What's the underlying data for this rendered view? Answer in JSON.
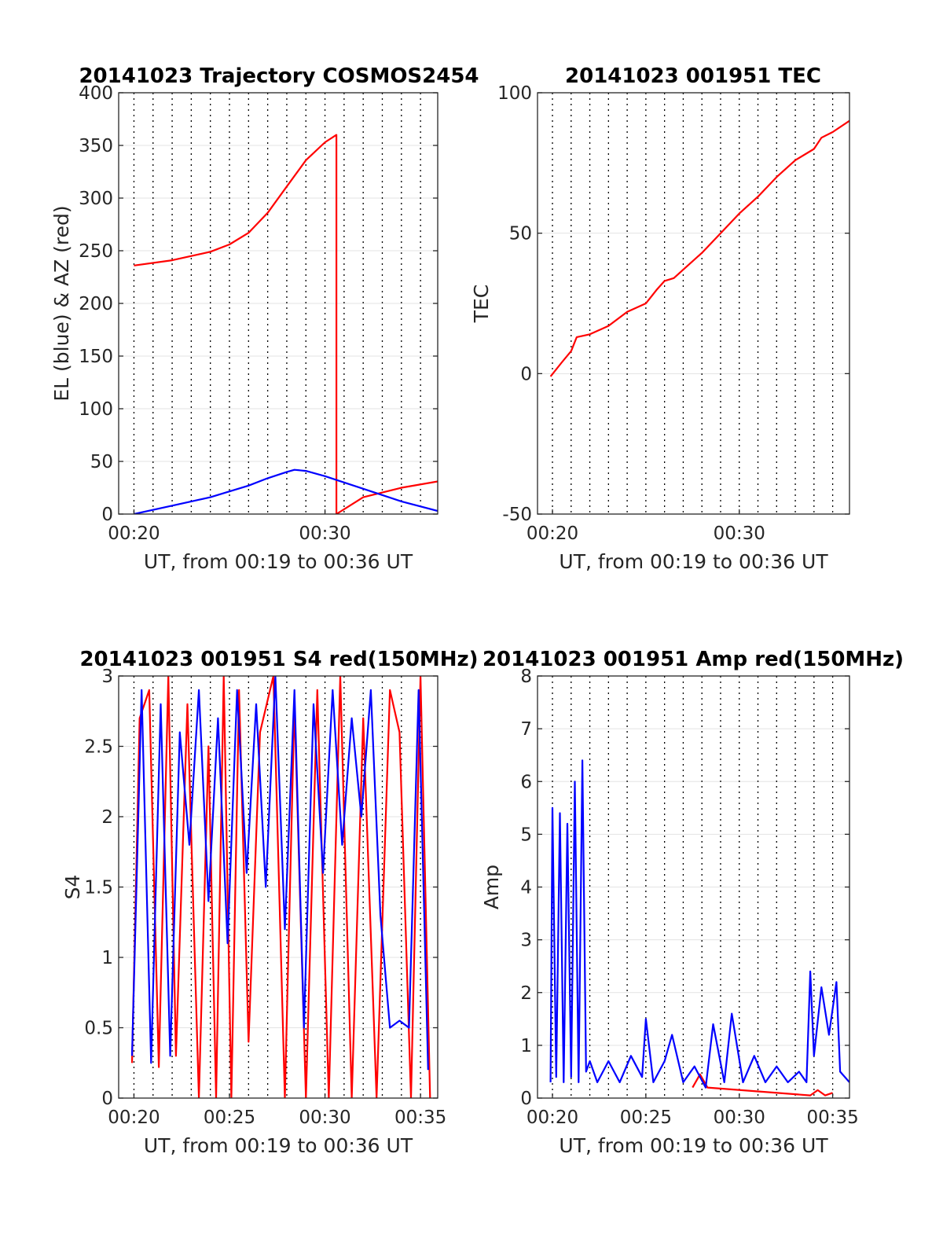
{
  "chart_data": [
    {
      "id": "trajectory",
      "type": "line",
      "title": "20141023 Trajectory COSMOS2454",
      "xlabel": "UT, from 00:19 to 00:36 UT",
      "ylabel": "EL (blue) & AZ (red)",
      "xlim": [
        19.2,
        35.9
      ],
      "ylim": [
        0,
        400
      ],
      "yticks": [
        0,
        50,
        100,
        150,
        200,
        250,
        300,
        350,
        400
      ],
      "xticks": [
        {
          "value": 20,
          "label": "00:20"
        },
        {
          "value": 30,
          "label": "00:30"
        }
      ],
      "x_unit": "minutes after 00:00 UT",
      "grid": true,
      "series": [
        {
          "color": "#ff0000",
          "x": [
            20,
            22,
            24,
            25,
            26,
            27,
            28,
            29,
            30,
            30.6,
            30.6,
            32,
            34,
            35.9
          ],
          "y": [
            236,
            241,
            249,
            256,
            267,
            286,
            311,
            336,
            353,
            360,
            0,
            16,
            25,
            31
          ]
        },
        {
          "color": "#0000ff",
          "x": [
            20,
            22,
            24,
            26,
            27,
            28,
            28.4,
            29,
            30,
            32,
            34,
            35.9
          ],
          "y": [
            0,
            8,
            16,
            27,
            34,
            40,
            42,
            41,
            36,
            24,
            12,
            3
          ]
        }
      ]
    },
    {
      "id": "tec",
      "type": "line",
      "title": "20141023 001951 TEC",
      "xlabel": "UT, from 00:19 to 00:36 UT",
      "ylabel": "TEC",
      "xlim": [
        19.2,
        35.9
      ],
      "ylim": [
        -50,
        100
      ],
      "yticks": [
        -50,
        0,
        50,
        100
      ],
      "xticks": [
        {
          "value": 20,
          "label": "00:20"
        },
        {
          "value": 30,
          "label": "00:30"
        }
      ],
      "x_unit": "minutes after 00:00 UT",
      "grid": true,
      "series": [
        {
          "color": "#ff0000",
          "x": [
            19.9,
            20.5,
            21,
            21.3,
            22,
            23,
            24,
            25,
            25.6,
            26,
            26.5,
            27,
            28,
            29,
            30,
            31,
            32,
            33,
            34,
            34.4,
            35,
            35.9
          ],
          "y": [
            -1,
            4,
            8,
            13,
            14,
            17,
            22,
            25,
            30,
            33,
            34,
            37,
            43,
            50,
            57,
            63,
            70,
            76,
            80,
            84,
            86,
            90
          ]
        }
      ]
    },
    {
      "id": "s4",
      "type": "line",
      "title": "20141023 001951 S4 red(150MHz)",
      "xlabel": "UT, from 00:19 to 00:36 UT",
      "ylabel": "S4",
      "xlim": [
        19.2,
        35.9
      ],
      "ylim": [
        0,
        3
      ],
      "yticks": [
        0,
        0.5,
        1,
        1.5,
        2,
        2.5,
        3
      ],
      "xticks": [
        {
          "value": 20,
          "label": "00:20"
        },
        {
          "value": 25,
          "label": "00:25"
        },
        {
          "value": 30,
          "label": "00:30"
        },
        {
          "value": 35,
          "label": "00:35"
        }
      ],
      "x_unit": "minutes after 00:00 UT",
      "grid": true,
      "series": [
        {
          "color": "#ff0000",
          "x": [
            19.9,
            20.3,
            20.8,
            21.3,
            21.8,
            22.2,
            22.8,
            23.4,
            23.9,
            24.3,
            24.7,
            25.1,
            25.5,
            26,
            26.6,
            27.3,
            27.9,
            28.4,
            29,
            29.6,
            30.2,
            30.8,
            31.4,
            32,
            32.7,
            33.4,
            33.9,
            34.5,
            35,
            35.5
          ],
          "y": [
            0.25,
            2.7,
            2.9,
            0.22,
            3.0,
            0.3,
            2.8,
            0.0,
            2.5,
            0.0,
            3.0,
            0.0,
            2.9,
            0.4,
            2.6,
            3.0,
            0.0,
            2.8,
            0.0,
            2.9,
            0.0,
            3.0,
            0.0,
            2.7,
            0.0,
            2.9,
            2.6,
            0.0,
            3.0,
            0.0
          ]
        },
        {
          "color": "#0000ff",
          "x": [
            19.9,
            20.4,
            20.9,
            21.4,
            21.9,
            22.4,
            22.9,
            23.4,
            23.9,
            24.4,
            24.9,
            25.4,
            25.9,
            26.4,
            26.9,
            27.4,
            27.9,
            28.4,
            28.9,
            29.4,
            29.9,
            30.4,
            30.9,
            31.4,
            31.9,
            32.4,
            32.9,
            33.4,
            33.9,
            34.4,
            34.9,
            35.4
          ],
          "y": [
            0.3,
            2.9,
            0.25,
            2.8,
            0.3,
            2.6,
            1.8,
            2.9,
            1.4,
            2.7,
            1.1,
            2.9,
            1.6,
            2.8,
            1.5,
            3.0,
            1.2,
            2.9,
            0.5,
            2.8,
            1.6,
            2.9,
            1.8,
            2.7,
            2.0,
            2.9,
            1.3,
            0.5,
            0.55,
            0.5,
            2.9,
            0.2
          ]
        }
      ]
    },
    {
      "id": "amp",
      "type": "line",
      "title": "20141023 001951 Amp red(150MHz)",
      "xlabel": "UT, from 00:19 to 00:36 UT",
      "ylabel": "Amp",
      "xlim": [
        19.2,
        35.9
      ],
      "ylim": [
        0,
        8
      ],
      "yticks": [
        0,
        1,
        2,
        3,
        4,
        5,
        6,
        7,
        8
      ],
      "xticks": [
        {
          "value": 20,
          "label": "00:20"
        },
        {
          "value": 25,
          "label": "00:25"
        },
        {
          "value": 30,
          "label": "00:30"
        },
        {
          "value": 35,
          "label": "00:35"
        }
      ],
      "x_unit": "minutes after 00:00 UT",
      "grid": true,
      "series": [
        {
          "color": "#ff0000",
          "x": [
            27.5,
            27.9,
            28.3,
            33.8,
            34.2,
            34.6,
            35.0
          ],
          "y": [
            0.2,
            0.45,
            0.2,
            0.05,
            0.15,
            0.05,
            0.1
          ]
        },
        {
          "color": "#0000ff",
          "x": [
            19.9,
            20.0,
            20.2,
            20.4,
            20.6,
            20.8,
            21.0,
            21.2,
            21.4,
            21.6,
            21.8,
            22.0,
            22.4,
            23.0,
            23.6,
            24.2,
            24.8,
            25.0,
            25.4,
            26.0,
            26.4,
            27.0,
            27.6,
            28.2,
            28.6,
            29.2,
            29.6,
            30.2,
            30.8,
            31.4,
            32.0,
            32.6,
            33.2,
            33.6,
            33.8,
            34.0,
            34.4,
            34.8,
            35.2,
            35.4,
            35.9
          ],
          "y": [
            0.3,
            5.5,
            0.4,
            5.4,
            0.3,
            5.2,
            0.4,
            6.0,
            0.3,
            6.4,
            0.5,
            0.7,
            0.3,
            0.7,
            0.3,
            0.8,
            0.4,
            1.5,
            0.3,
            0.7,
            1.2,
            0.3,
            0.6,
            0.2,
            1.4,
            0.3,
            1.6,
            0.3,
            0.8,
            0.3,
            0.6,
            0.3,
            0.5,
            0.3,
            2.4,
            0.8,
            2.1,
            1.2,
            2.2,
            0.5,
            0.3
          ]
        }
      ]
    }
  ]
}
